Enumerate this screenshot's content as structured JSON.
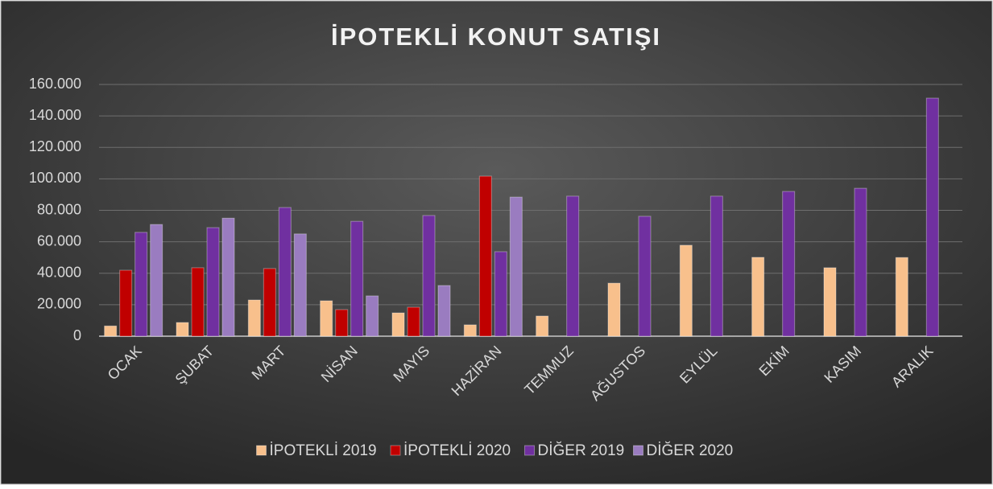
{
  "chart_data": {
    "type": "bar",
    "title": "İPOTEKLİ KONUT SATIŞI",
    "categories": [
      "OCAK",
      "ŞUBAT",
      "MART",
      "NİSAN",
      "MAYIS",
      "HAZİRAN",
      "TEMMUZ",
      "AĞUSTOS",
      "EYLÜL",
      "EKİM",
      "KASIM",
      "ARALIK"
    ],
    "series": [
      {
        "name": "İPOTEKLİ 2019",
        "color": "#f8c08c",
        "values": [
          6500,
          8700,
          23000,
          22500,
          14800,
          7200,
          12800,
          33700,
          57800,
          50100,
          43500,
          50000
        ]
      },
      {
        "name": "İPOTEKLİ 2020",
        "color": "#c00000",
        "values": [
          41900,
          43500,
          43000,
          16900,
          18400,
          101700,
          null,
          null,
          null,
          null,
          null,
          null
        ]
      },
      {
        "name": "DİĞER 2019",
        "color": "#7030a0",
        "values": [
          66000,
          69000,
          81800,
          73000,
          76700,
          53700,
          89000,
          76200,
          89000,
          92000,
          94000,
          151300
        ]
      },
      {
        "name": "DİĞER 2020",
        "color": "#9a7cc0",
        "values": [
          71000,
          75000,
          65000,
          25600,
          32200,
          88400,
          null,
          null,
          null,
          null,
          null,
          null
        ]
      }
    ],
    "ylim": [
      0,
      160000
    ],
    "yticks": [
      0,
      {
        "value": 20000,
        "label": "20.000"
      },
      {
        "value": 40000,
        "label": "40.000"
      },
      {
        "value": 60000,
        "label": "60.000"
      },
      {
        "value": 80000,
        "label": "80.000"
      },
      {
        "value": 100000,
        "label": "100.000"
      },
      {
        "value": 120000,
        "label": "120.000"
      },
      {
        "value": 140000,
        "label": "140.000"
      },
      {
        "value": 160000,
        "label": "160.000"
      }
    ],
    "grid": true,
    "legend": "bottom"
  }
}
